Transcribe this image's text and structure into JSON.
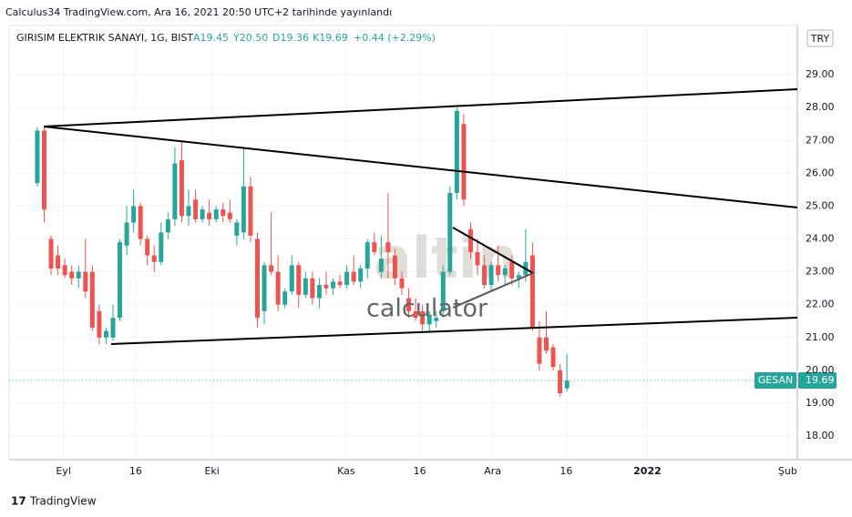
{
  "header": "Calculus34 TradingView.com, Ara 16, 2021 20:50 UTC+2 tarihinde yayınlandı",
  "footer": "TradingView",
  "chart_data": {
    "type": "candlestick",
    "symbol": "GIRISIM ELEKTRIK SANAYI, 1G, BIST",
    "legend_values": [
      "A19.45",
      "Y20.50",
      "D19.36",
      "K19.69",
      "+0.44 (+2.29%)"
    ],
    "currency": "TRY",
    "watermark": [
      "altin",
      "calculator"
    ],
    "last_price": {
      "label": "GESAN",
      "value": 19.69
    },
    "up_color": "#26a69a",
    "down_color": "#ef5350",
    "grid": true,
    "ohlc": [
      [
        25.7,
        27.4,
        25.6,
        27.3
      ],
      [
        27.3,
        27.4,
        24.5,
        24.9
      ],
      [
        24.0,
        24.1,
        22.9,
        23.1
      ],
      [
        23.5,
        23.8,
        22.9,
        23.1
      ],
      [
        23.2,
        23.4,
        22.8,
        22.9
      ],
      [
        23.0,
        23.2,
        22.6,
        22.8
      ],
      [
        22.8,
        23.2,
        22.5,
        23.0
      ],
      [
        23.0,
        24.0,
        22.2,
        22.4
      ],
      [
        23.0,
        23.2,
        21.2,
        21.3
      ],
      [
        21.8,
        22.0,
        20.8,
        21.0
      ],
      [
        21.0,
        21.3,
        20.8,
        21.2
      ],
      [
        21.0,
        22.0,
        20.9,
        21.6
      ],
      [
        21.6,
        24.0,
        21.5,
        23.9
      ],
      [
        23.8,
        25.0,
        23.5,
        24.5
      ],
      [
        24.5,
        25.5,
        24.2,
        25.0
      ],
      [
        25.0,
        25.1,
        23.8,
        24.0
      ],
      [
        24.0,
        24.1,
        23.2,
        23.5
      ],
      [
        23.5,
        23.8,
        23.0,
        23.3
      ],
      [
        23.3,
        24.5,
        23.2,
        24.2
      ],
      [
        24.2,
        24.8,
        24.0,
        24.6
      ],
      [
        24.6,
        26.8,
        24.4,
        26.3
      ],
      [
        26.4,
        27.0,
        24.5,
        24.7
      ],
      [
        24.7,
        25.5,
        24.4,
        25.0
      ],
      [
        25.2,
        25.5,
        24.5,
        24.6
      ],
      [
        24.6,
        25.0,
        24.5,
        24.9
      ],
      [
        24.8,
        25.2,
        24.4,
        24.6
      ],
      [
        24.6,
        25.0,
        24.5,
        24.9
      ],
      [
        24.9,
        25.1,
        24.5,
        24.7
      ],
      [
        24.8,
        25.2,
        24.5,
        24.6
      ],
      [
        24.1,
        24.6,
        23.8,
        24.5
      ],
      [
        24.2,
        26.8,
        24.0,
        25.6
      ],
      [
        25.6,
        25.9,
        23.9,
        24.1
      ],
      [
        24.0,
        24.2,
        21.3,
        21.6
      ],
      [
        21.8,
        23.3,
        21.4,
        23.2
      ],
      [
        23.2,
        24.8,
        22.9,
        23.0
      ],
      [
        23.0,
        23.5,
        21.8,
        22.0
      ],
      [
        22.0,
        22.5,
        21.9,
        22.4
      ],
      [
        22.4,
        23.5,
        22.3,
        23.2
      ],
      [
        23.2,
        23.3,
        21.9,
        22.3
      ],
      [
        22.3,
        23.0,
        22.2,
        22.8
      ],
      [
        22.8,
        23.0,
        22.0,
        22.2
      ],
      [
        22.2,
        22.8,
        21.9,
        22.6
      ],
      [
        22.6,
        23.0,
        22.3,
        22.5
      ],
      [
        22.5,
        22.8,
        22.3,
        22.7
      ],
      [
        22.7,
        22.9,
        22.5,
        22.6
      ],
      [
        22.6,
        23.2,
        22.5,
        23.0
      ],
      [
        23.0,
        23.5,
        22.6,
        22.7
      ],
      [
        22.7,
        23.2,
        22.5,
        23.1
      ],
      [
        23.1,
        24.0,
        22.8,
        23.9
      ],
      [
        23.9,
        24.2,
        23.5,
        23.6
      ],
      [
        23.0,
        24.1,
        22.8,
        23.4
      ],
      [
        23.9,
        25.4,
        22.8,
        23.6
      ],
      [
        23.5,
        23.7,
        22.6,
        22.8
      ],
      [
        22.8,
        23.0,
        22.3,
        22.5
      ],
      [
        22.2,
        22.5,
        21.6,
        21.8
      ],
      [
        21.8,
        22.2,
        21.5,
        21.6
      ],
      [
        21.8,
        22.0,
        21.2,
        21.4
      ],
      [
        21.4,
        21.8,
        21.2,
        21.7
      ],
      [
        21.5,
        21.8,
        21.3,
        21.6
      ],
      [
        21.8,
        23.2,
        21.6,
        23.0
      ],
      [
        23.0,
        25.6,
        22.9,
        25.4
      ],
      [
        25.4,
        28.0,
        25.2,
        27.9
      ],
      [
        27.5,
        27.8,
        25.0,
        25.2
      ],
      [
        24.3,
        24.5,
        23.4,
        23.6
      ],
      [
        23.6,
        24.0,
        22.9,
        23.2
      ],
      [
        23.2,
        23.5,
        22.5,
        22.6
      ],
      [
        22.6,
        23.3,
        22.4,
        23.2
      ],
      [
        23.2,
        23.8,
        22.7,
        22.9
      ],
      [
        22.9,
        23.2,
        22.6,
        23.1
      ],
      [
        23.3,
        23.5,
        22.6,
        22.8
      ],
      [
        22.8,
        23.0,
        22.5,
        22.9
      ],
      [
        22.9,
        24.3,
        22.7,
        23.3
      ],
      [
        23.5,
        23.9,
        21.2,
        21.3
      ],
      [
        21.0,
        21.5,
        20.0,
        20.2
      ],
      [
        21.0,
        21.8,
        20.5,
        20.6
      ],
      [
        20.7,
        20.8,
        20.0,
        20.1
      ],
      [
        20.0,
        20.2,
        19.2,
        19.3
      ],
      [
        19.45,
        20.5,
        19.36,
        19.69
      ]
    ],
    "xlim": [
      -4.1,
      110.5
    ],
    "xticks": [
      {
        "value": 3.8,
        "label": "Eyl"
      },
      {
        "value": 14.3,
        "label": "16"
      },
      {
        "value": 25.4,
        "label": "Eki"
      },
      {
        "value": 44.9,
        "label": "Kas"
      },
      {
        "value": 55.6,
        "label": "16"
      },
      {
        "value": 66.2,
        "label": "Ara"
      },
      {
        "value": 76.9,
        "label": "16"
      },
      {
        "value": 88.7,
        "label": "2022"
      },
      {
        "value": 109.1,
        "label": "Şub"
      }
    ],
    "ylim": [
      17.28,
      30.5
    ],
    "yticks": [
      {
        "value": 18,
        "label": "18.00"
      },
      {
        "value": 19,
        "label": "19.00"
      },
      {
        "value": 20,
        "label": "20.00"
      },
      {
        "value": 21,
        "label": "21.00"
      },
      {
        "value": 22,
        "label": "22.00"
      },
      {
        "value": 23,
        "label": "23.00"
      },
      {
        "value": 24,
        "label": "24.00"
      },
      {
        "value": 25,
        "label": "25.00"
      },
      {
        "value": 26,
        "label": "26.00"
      },
      {
        "value": 27,
        "label": "27.00"
      },
      {
        "value": 28,
        "label": "28.00"
      },
      {
        "value": 29,
        "label": "29.00"
      }
    ]
  }
}
